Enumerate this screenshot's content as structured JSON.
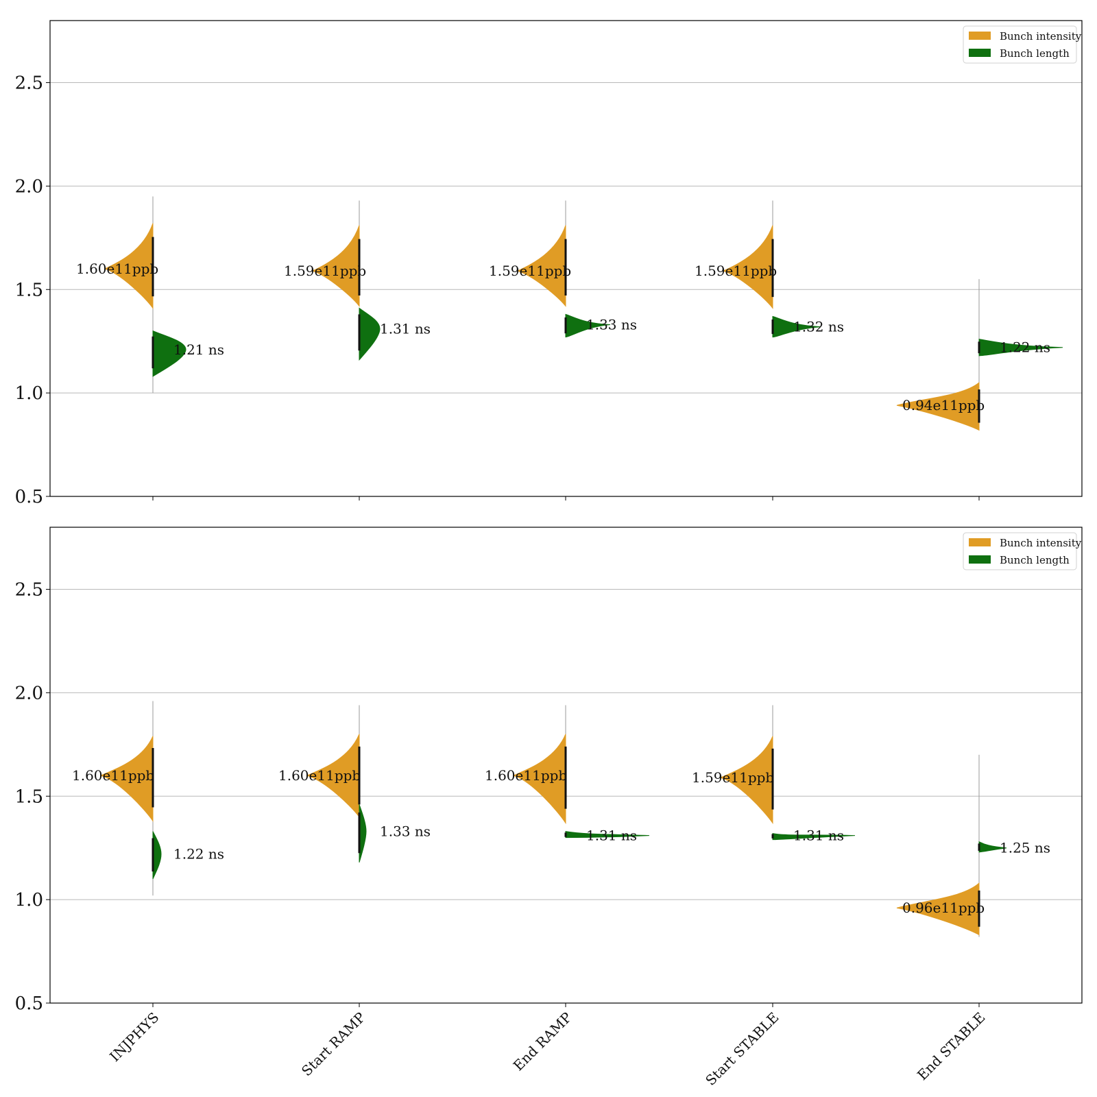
{
  "chart_data": [
    {
      "type": "violin",
      "categories": [
        "INJPHYS",
        "Start RAMP",
        "End RAMP",
        "Start STABLE",
        "End STABLE"
      ],
      "ylim": [
        0.5,
        2.8
      ],
      "yticks": [
        "0.5",
        "1.0",
        "1.5",
        "2.0",
        "2.5"
      ],
      "grid": true,
      "legend": {
        "placement": "top-right",
        "entries": [
          "Bunch intensity",
          "Bunch length"
        ]
      },
      "series": [
        {
          "name": "Bunch intensity",
          "color": "#E09C25",
          "values": [
            1.6,
            1.59,
            1.59,
            1.59,
            0.94
          ],
          "labels": [
            "1.60e11ppb",
            "1.59e11ppb",
            "1.59e11ppb",
            "1.59e11ppb",
            "0.94e11ppb"
          ],
          "ranges": [
            [
              1.41,
              1.82
            ],
            [
              1.42,
              1.81
            ],
            [
              1.42,
              1.81
            ],
            [
              1.41,
              1.81
            ],
            [
              0.82,
              1.05
            ]
          ],
          "whisker": [
            [
              1.0,
              1.95
            ],
            [
              1.42,
              1.93
            ],
            [
              1.42,
              1.93
            ],
            [
              1.41,
              1.93
            ],
            [
              0.82,
              1.55
            ]
          ]
        },
        {
          "name": "Bunch length",
          "color": "#0F7010",
          "values": [
            1.21,
            1.31,
            1.33,
            1.32,
            1.22
          ],
          "labels": [
            "1.21 ns",
            "1.31 ns",
            "1.33 ns",
            "1.32 ns",
            "1.22 ns"
          ],
          "ranges": [
            [
              1.08,
              1.3
            ],
            [
              1.16,
              1.41
            ],
            [
              1.27,
              1.38
            ],
            [
              1.27,
              1.37
            ],
            [
              1.18,
              1.26
            ]
          ]
        }
      ]
    },
    {
      "type": "violin",
      "categories": [
        "INJPHYS",
        "Start RAMP",
        "End RAMP",
        "Start STABLE",
        "End STABLE"
      ],
      "ylim": [
        0.5,
        2.8
      ],
      "yticks": [
        "0.5",
        "1.0",
        "1.5",
        "2.0",
        "2.5"
      ],
      "grid": true,
      "legend": {
        "placement": "top-right",
        "entries": [
          "Bunch intensity",
          "Bunch length"
        ]
      },
      "series": [
        {
          "name": "Bunch intensity",
          "color": "#E09C25",
          "values": [
            1.6,
            1.6,
            1.6,
            1.59,
            0.96
          ],
          "labels": [
            "1.60e11ppb",
            "1.60e11ppb",
            "1.60e11ppb",
            "1.59e11ppb",
            "0.96e11ppb"
          ],
          "ranges": [
            [
              1.38,
              1.79
            ],
            [
              1.4,
              1.8
            ],
            [
              1.37,
              1.8
            ],
            [
              1.37,
              1.79
            ],
            [
              0.83,
              1.08
            ]
          ],
          "whisker": [
            [
              1.02,
              1.96
            ],
            [
              1.4,
              1.94
            ],
            [
              1.37,
              1.94
            ],
            [
              1.37,
              1.94
            ],
            [
              0.82,
              1.7
            ]
          ]
        },
        {
          "name": "Bunch length",
          "color": "#0F7010",
          "values": [
            1.22,
            1.33,
            1.31,
            1.31,
            1.25
          ],
          "labels": [
            "1.22 ns",
            "1.33 ns",
            "1.31 ns",
            "1.31 ns",
            "1.25 ns"
          ],
          "ranges": [
            [
              1.1,
              1.33
            ],
            [
              1.18,
              1.46
            ],
            [
              1.3,
              1.33
            ],
            [
              1.29,
              1.32
            ],
            [
              1.23,
              1.28
            ]
          ]
        }
      ]
    }
  ]
}
